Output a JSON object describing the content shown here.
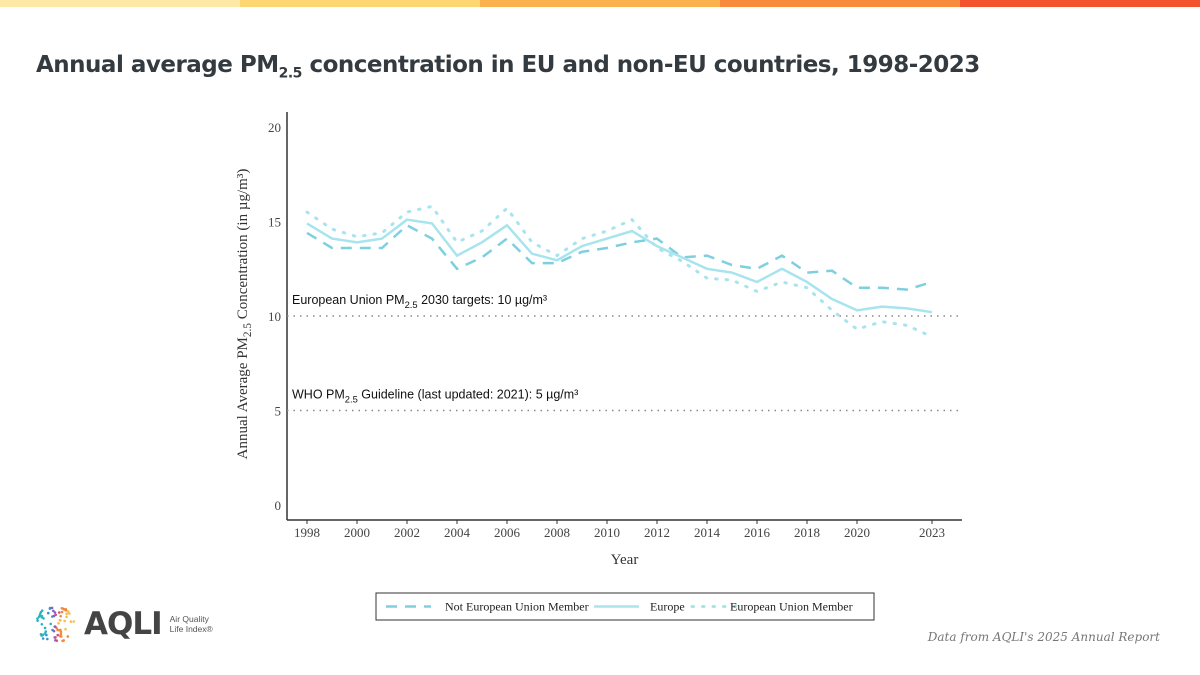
{
  "colors": {
    "topbar": [
      "#fde8a6",
      "#fdd673",
      "#fcb24c",
      "#f98b3c",
      "#f2552d"
    ],
    "line": "#a8e4ee",
    "dashed": "#7fd0de",
    "axis": "#333333"
  },
  "title": {
    "prefix": "Annual average PM",
    "sub": "2.5",
    "suffix": " concentration in EU and non-EU countries, 1998-2023"
  },
  "logo": {
    "name": "AQLI",
    "tagline_line1": "Air Quality",
    "tagline_line2": "Life Index®"
  },
  "source": "Data from AQLI's 2025 Annual Report",
  "chart_data": {
    "type": "line",
    "title": "Annual average PM2.5 concentration in EU and non-EU countries, 1998-2023",
    "xlabel": "Year",
    "ylabel_prefix": "Annual Average  PM",
    "ylabel_sub": "2.5",
    "ylabel_suffix": "  Concentration (in µg/m³)",
    "xlim": [
      1997.2,
      2024.2
    ],
    "ylim": [
      -0.8,
      20.8
    ],
    "x_ticks": [
      1998,
      2000,
      2002,
      2004,
      2006,
      2008,
      2010,
      2012,
      2014,
      2016,
      2018,
      2020,
      2023
    ],
    "y_ticks": [
      0,
      5,
      10,
      15,
      20
    ],
    "x": [
      1998,
      1999,
      2000,
      2001,
      2002,
      2003,
      2004,
      2005,
      2006,
      2007,
      2008,
      2009,
      2010,
      2011,
      2012,
      2013,
      2014,
      2015,
      2016,
      2017,
      2018,
      2019,
      2020,
      2021,
      2022,
      2023
    ],
    "series": [
      {
        "name": "Not European Union Member",
        "style": "dashed",
        "values": [
          14.4,
          13.6,
          13.6,
          13.6,
          14.8,
          14.1,
          12.5,
          13.1,
          14.1,
          12.8,
          12.8,
          13.4,
          13.6,
          13.9,
          14.1,
          13.1,
          13.2,
          12.7,
          12.5,
          13.2,
          12.3,
          12.4,
          11.5,
          11.5,
          11.4,
          11.8
        ]
      },
      {
        "name": "Europe",
        "style": "solid",
        "values": [
          14.9,
          14.1,
          13.9,
          14.1,
          15.1,
          14.9,
          13.2,
          13.9,
          14.8,
          13.3,
          12.95,
          13.7,
          14.1,
          14.5,
          13.7,
          13.1,
          12.5,
          12.3,
          11.8,
          12.5,
          11.8,
          10.9,
          10.3,
          10.5,
          10.4,
          10.2
        ]
      },
      {
        "name": "European Union Member",
        "style": "dotted",
        "values": [
          15.5,
          14.6,
          14.2,
          14.4,
          15.5,
          15.8,
          13.9,
          14.5,
          15.7,
          13.9,
          13.2,
          14.1,
          14.5,
          15.1,
          13.6,
          12.9,
          12.0,
          11.9,
          11.3,
          11.8,
          11.5,
          10.3,
          9.3,
          9.7,
          9.5,
          8.9
        ]
      }
    ],
    "reference_lines": [
      {
        "value": 10,
        "label_prefix": "European Union  PM",
        "label_sub": "2.5",
        "label_suffix": " 2030 targets: 10 µg/m³"
      },
      {
        "value": 5,
        "label_prefix": "WHO PM",
        "label_sub": "2.5",
        "label_suffix": " Guideline (last updated: 2021): 5 µg/m³"
      }
    ],
    "legend_position": "bottom",
    "grid": false
  }
}
